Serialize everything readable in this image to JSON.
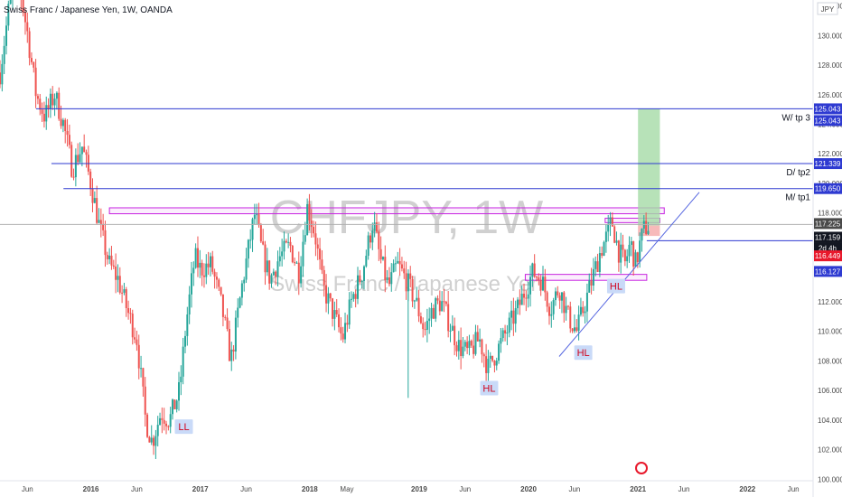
{
  "chart_data": {
    "type": "candlestick",
    "title": "Swiss Franc / Japanese Yen, 1W, OANDA",
    "watermark_symbol": "CHFJPY, 1W",
    "watermark_name": "Swiss Franc / Japanese Yen",
    "currency": "JPY",
    "y_ticks": [
      100,
      102,
      104,
      106,
      108,
      110,
      112,
      114,
      116,
      118,
      120,
      122,
      124,
      126,
      128,
      130,
      132
    ],
    "ylim": [
      99.9,
      132.4
    ],
    "x_ticks": [
      {
        "label": "Jun",
        "t": 2015.42
      },
      {
        "label": "2016",
        "t": 2016.0
      },
      {
        "label": "Jun",
        "t": 2016.42
      },
      {
        "label": "2017",
        "t": 2017.0
      },
      {
        "label": "Jun",
        "t": 2017.42
      },
      {
        "label": "2018",
        "t": 2018.0
      },
      {
        "label": "May",
        "t": 2018.34
      },
      {
        "label": "2019",
        "t": 2019.0
      },
      {
        "label": "Jun",
        "t": 2019.42
      },
      {
        "label": "2020",
        "t": 2020.0
      },
      {
        "label": "Jun",
        "t": 2020.42
      },
      {
        "label": "2021",
        "t": 2021.0
      },
      {
        "label": "Jun",
        "t": 2021.42
      },
      {
        "label": "2022",
        "t": 2022.0
      },
      {
        "label": "Jun",
        "t": 2022.42
      }
    ],
    "xlim": [
      2015.17,
      2022.6
    ],
    "price_path": [
      [
        2015.17,
        127.5
      ],
      [
        2015.25,
        131.8
      ],
      [
        2015.33,
        134.0
      ],
      [
        2015.42,
        130.2
      ],
      [
        2015.5,
        126.0
      ],
      [
        2015.58,
        124.5
      ],
      [
        2015.67,
        126.0
      ],
      [
        2015.75,
        124.0
      ],
      [
        2015.83,
        121.0
      ],
      [
        2015.92,
        122.5
      ],
      [
        2016.0,
        120.0
      ],
      [
        2016.08,
        117.0
      ],
      [
        2016.17,
        114.5
      ],
      [
        2016.25,
        113.5
      ],
      [
        2016.33,
        111.5
      ],
      [
        2016.42,
        109.5
      ],
      [
        2016.5,
        104.0
      ],
      [
        2016.56,
        102.5
      ],
      [
        2016.64,
        104.5
      ],
      [
        2016.72,
        104.0
      ],
      [
        2016.81,
        106.0
      ],
      [
        2016.87,
        110.5
      ],
      [
        2016.95,
        115.0
      ],
      [
        2017.0,
        114.2
      ],
      [
        2017.1,
        114.5
      ],
      [
        2017.2,
        111.5
      ],
      [
        2017.28,
        108.0
      ],
      [
        2017.38,
        113.0
      ],
      [
        2017.45,
        116.0
      ],
      [
        2017.5,
        118.0
      ],
      [
        2017.56,
        115.5
      ],
      [
        2017.64,
        113.5
      ],
      [
        2017.72,
        115.0
      ],
      [
        2017.82,
        115.8
      ],
      [
        2017.9,
        114.0
      ],
      [
        2017.98,
        118.5
      ],
      [
        2018.05,
        116.5
      ],
      [
        2018.12,
        113.0
      ],
      [
        2018.2,
        111.5
      ],
      [
        2018.3,
        109.5
      ],
      [
        2018.38,
        112.0
      ],
      [
        2018.48,
        114.0
      ],
      [
        2018.58,
        117.5
      ],
      [
        2018.64,
        115.0
      ],
      [
        2018.72,
        113.0
      ],
      [
        2018.8,
        114.5
      ],
      [
        2018.88,
        113.5
      ],
      [
        2018.97,
        112.0
      ],
      [
        2019.05,
        110.0
      ],
      [
        2019.12,
        111.5
      ],
      [
        2019.2,
        112.0
      ],
      [
        2019.28,
        110.5
      ],
      [
        2019.36,
        109.0
      ],
      [
        2019.45,
        108.5
      ],
      [
        2019.55,
        109.5
      ],
      [
        2019.63,
        107.5
      ],
      [
        2019.7,
        108.5
      ],
      [
        2019.8,
        110.0
      ],
      [
        2019.9,
        111.5
      ],
      [
        2019.98,
        113.0
      ],
      [
        2020.04,
        114.0
      ],
      [
        2020.12,
        113.5
      ],
      [
        2020.2,
        111.5
      ],
      [
        2020.28,
        113.0
      ],
      [
        2020.36,
        111.0
      ],
      [
        2020.44,
        110.0
      ],
      [
        2020.52,
        112.0
      ],
      [
        2020.6,
        114.0
      ],
      [
        2020.66,
        115.5
      ],
      [
        2020.72,
        116.5
      ],
      [
        2020.76,
        117.5
      ],
      [
        2020.82,
        115.5
      ],
      [
        2020.88,
        114.5
      ],
      [
        2020.93,
        116.0
      ],
      [
        2020.98,
        114.5
      ],
      [
        2021.02,
        116.0
      ],
      [
        2021.06,
        117.0
      ],
      [
        2021.1,
        117.15
      ]
    ],
    "spike_lows": [
      {
        "t": 2018.9,
        "low": 105.5
      }
    ],
    "horizontal_lines": [
      {
        "price": 125.043,
        "start": 2015.5,
        "label": "W/ tp 3",
        "color": "#2e3ad1"
      },
      {
        "price": 121.339,
        "start": 2015.64,
        "label": "D/ tp2",
        "color": "#2e3ad1"
      },
      {
        "price": 119.65,
        "start": 2015.75,
        "label": "M/ tp1",
        "color": "#2e3ad1"
      },
      {
        "price": 116.127,
        "start": 2021.08,
        "label": "",
        "color": "#2e3ad1"
      }
    ],
    "price_line": {
      "price": 117.225,
      "color": "#b0b0b0"
    },
    "zones": [
      {
        "t0": 2016.17,
        "t1": 2021.24,
        "p0": 117.95,
        "p1": 118.35,
        "color": "#c724e0"
      },
      {
        "t0": 2019.97,
        "t1": 2021.08,
        "p0": 113.45,
        "p1": 113.85,
        "color": "#c724e0"
      },
      {
        "t0": 2020.7,
        "t1": 2021.2,
        "p0": 117.35,
        "p1": 117.65,
        "color": "#c724e0"
      }
    ],
    "target_box": {
      "t0": 2021.0,
      "t1": 2021.2,
      "p0": 117.159,
      "p1": 125.043,
      "color": "#a5dba6"
    },
    "stop_box": {
      "t0": 2021.0,
      "t1": 2021.2,
      "p0": 116.449,
      "p1": 117.159,
      "color": "#f6b2b2"
    },
    "trendlines": [
      {
        "t0": 2020.28,
        "p0": 108.3,
        "t1": 2021.56,
        "p1": 119.4,
        "color": "#5566e0"
      }
    ],
    "annotations": [
      {
        "text": "LL",
        "t": 2016.85,
        "p": 103.5
      },
      {
        "text": "HL",
        "t": 2019.64,
        "p": 106.1
      },
      {
        "text": "HL",
        "t": 2020.5,
        "p": 108.5
      },
      {
        "text": "HL",
        "t": 2020.8,
        "p": 113.0
      }
    ],
    "price_badges": [
      {
        "text": "125.043",
        "price": 125.043,
        "bg": "#2e3ad1",
        "offset": 0
      },
      {
        "text": "125.043",
        "price": 125.043,
        "bg": "#2e3ad1",
        "offset": 13
      },
      {
        "text": "121.339",
        "price": 121.339,
        "bg": "#2e3ad1",
        "offset": 0
      },
      {
        "text": "119.650",
        "price": 119.65,
        "bg": "#2e3ad1",
        "offset": 0
      },
      {
        "text": "117.225",
        "price": 117.225,
        "bg": "#4a4a4a",
        "offset": -1
      },
      {
        "text": "117.159",
        "price": 117.159,
        "bg": "#131722",
        "offset": 13
      },
      {
        "text": "2d 4h",
        "price": 117.159,
        "bg": "#131722",
        "offset": 25
      },
      {
        "text": "116.449",
        "price": 116.449,
        "bg": "#e8192c",
        "offset": 22
      },
      {
        "text": "116.127",
        "price": 116.127,
        "bg": "#2e3ad1",
        "offset": 34
      }
    ],
    "colors": {
      "up": "#26a69a",
      "down": "#ef5350",
      "axis": "#4a4a4a"
    },
    "grid": false
  }
}
